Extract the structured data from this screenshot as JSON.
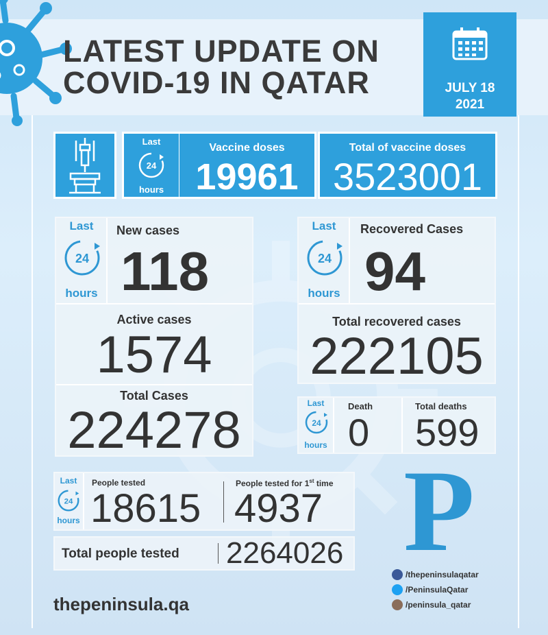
{
  "header": {
    "title_line1": "LATEST UPDATE ON",
    "title_line2": "COVID-19 IN QATAR",
    "date_line1": "JULY 18",
    "date_line2": "2021"
  },
  "last24": {
    "top": "Last",
    "mid": "24",
    "bottom": "hours"
  },
  "vaccine": {
    "doses_label": "Vaccine doses",
    "doses_value": "19961",
    "total_label": "Total of vaccine doses",
    "total_value": "3523001"
  },
  "cases": {
    "new_label": "New cases",
    "new_value": "118",
    "active_label": "Active cases",
    "active_value": "1574",
    "total_label": "Total Cases",
    "total_value": "224278"
  },
  "recovered": {
    "label": "Recovered Cases",
    "value": "94",
    "total_label": "Total recovered cases",
    "total_value": "222105"
  },
  "deaths": {
    "death_label": "Death",
    "death_value": "0",
    "total_label": "Total deaths",
    "total_value": "599"
  },
  "tests": {
    "people_label": "People tested",
    "people_value": "18615",
    "first_label": "People tested for 1",
    "first_sup": "st",
    "first_suffix": " time",
    "first_value": "4937",
    "total_label": "Total people tested",
    "total_value": "2264026"
  },
  "footer": {
    "site": "thepeninsula.qa",
    "logo_letter": "P",
    "facebook": "/thepeninsulaqatar",
    "twitter": "/PeninsulaQatar",
    "instagram": "/peninsula_qatar"
  },
  "colors": {
    "accent": "#2ea0dc",
    "text": "#333333"
  }
}
